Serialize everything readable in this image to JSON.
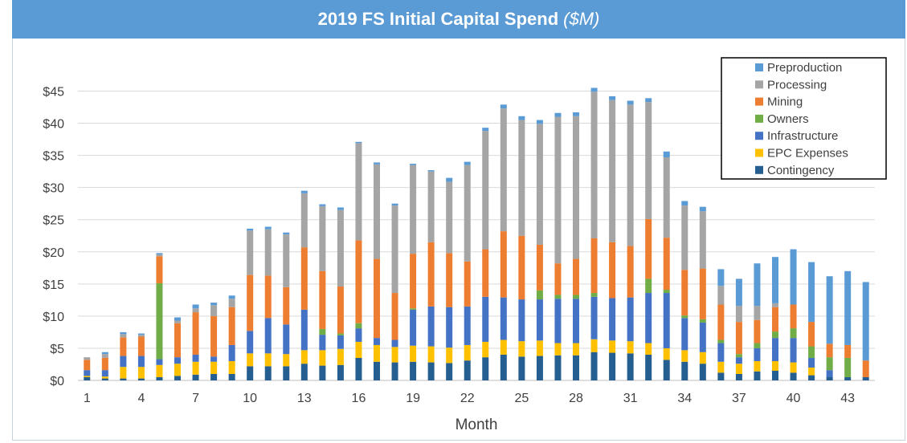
{
  "chart_data": {
    "type": "bar",
    "stacked": true,
    "title": "2019 FS Initial Capital Spend",
    "title_unit": "($M)",
    "xlabel": "Month",
    "ylabel": "",
    "ylim": [
      0,
      45
    ],
    "yticks": [
      "$0",
      "$5",
      "$10",
      "$15",
      "$20",
      "$25",
      "$30",
      "$35",
      "$40",
      "$45"
    ],
    "xtick_labels": [
      "1",
      "4",
      "7",
      "10",
      "13",
      "16",
      "19",
      "22",
      "25",
      "28",
      "31",
      "34",
      "37",
      "40",
      "43"
    ],
    "categories": [
      "1",
      "2",
      "3",
      "4",
      "5",
      "6",
      "7",
      "8",
      "9",
      "10",
      "11",
      "12",
      "13",
      "14",
      "15",
      "16",
      "17",
      "18",
      "19",
      "20",
      "21",
      "22",
      "23",
      "24",
      "25",
      "26",
      "27",
      "28",
      "29",
      "30",
      "31",
      "32",
      "33",
      "34",
      "35",
      "36",
      "37",
      "38",
      "39",
      "40",
      "41",
      "42",
      "43",
      "44"
    ],
    "grid": true,
    "legend_position": "top-right",
    "series": [
      {
        "name": "Contingency",
        "color": "#255e91",
        "values": [
          0.5,
          0.3,
          0.3,
          0.3,
          0.5,
          0.7,
          0.9,
          1.0,
          1.0,
          2.2,
          2.2,
          2.2,
          2.6,
          2.3,
          2.4,
          3.5,
          2.9,
          2.8,
          2.9,
          2.8,
          2.7,
          3.1,
          3.6,
          4.0,
          3.7,
          3.8,
          3.9,
          3.9,
          4.4,
          4.3,
          4.2,
          4.0,
          3.2,
          2.9,
          2.6,
          1.2,
          1.0,
          1.4,
          1.5,
          1.2,
          0.8,
          0.5,
          0.5,
          0.5
        ]
      },
      {
        "name": "EPC Expenses",
        "color": "#ffc000",
        "values": [
          0.2,
          0.3,
          1.8,
          1.8,
          1.9,
          1.9,
          2.0,
          1.9,
          2.0,
          2.0,
          2.0,
          1.9,
          2.1,
          2.4,
          2.5,
          2.5,
          2.6,
          2.4,
          2.5,
          2.5,
          2.4,
          2.4,
          2.4,
          2.3,
          2.4,
          2.4,
          1.9,
          1.9,
          2.0,
          1.9,
          1.9,
          1.8,
          1.8,
          1.8,
          1.8,
          1.7,
          1.6,
          1.6,
          1.5,
          1.6,
          1.2,
          0.0,
          0.0,
          0.0
        ]
      },
      {
        "name": "Infrastructure",
        "color": "#4472c4",
        "values": [
          0.9,
          1.0,
          1.7,
          1.7,
          0.9,
          1.0,
          1.1,
          0.8,
          2.5,
          3.5,
          5.5,
          4.6,
          6.3,
          2.4,
          2.1,
          2.1,
          1.1,
          1.1,
          5.6,
          6.2,
          6.3,
          6.0,
          7.0,
          6.6,
          6.5,
          6.4,
          6.9,
          6.9,
          6.6,
          6.6,
          6.8,
          7.8,
          8.6,
          5.0,
          4.6,
          2.9,
          1.0,
          2.0,
          3.6,
          3.8,
          1.5,
          1.1,
          0.0,
          0.0
        ]
      },
      {
        "name": "Owners",
        "color": "#70ad47",
        "values": [
          0.0,
          0.0,
          0.0,
          0.0,
          11.8,
          0.0,
          0.0,
          0.0,
          0.0,
          0.0,
          0.0,
          0.0,
          0.0,
          0.9,
          0.3,
          0.8,
          0.0,
          0.0,
          0.2,
          0.0,
          0.0,
          0.0,
          0.0,
          0.0,
          0.0,
          1.4,
          0.6,
          0.6,
          0.6,
          0.0,
          0.0,
          2.2,
          0.5,
          0.4,
          0.5,
          0.5,
          0.5,
          0.8,
          1.0,
          1.5,
          1.8,
          2.0,
          3.0,
          0.0
        ]
      },
      {
        "name": "Mining",
        "color": "#ed7d31",
        "values": [
          1.6,
          1.9,
          2.9,
          3.0,
          4.2,
          5.3,
          6.6,
          6.3,
          5.9,
          8.7,
          6.6,
          5.8,
          9.7,
          9.0,
          7.3,
          12.9,
          12.3,
          7.3,
          8.5,
          10.0,
          8.4,
          7.0,
          7.4,
          10.3,
          9.9,
          7.1,
          4.9,
          5.6,
          8.5,
          8.7,
          8.0,
          9.3,
          8.1,
          7.1,
          7.9,
          5.5,
          5.0,
          3.6,
          3.8,
          3.7,
          3.8,
          2.1,
          2.0,
          2.6
        ]
      },
      {
        "name": "Processing",
        "color": "#a5a5a5",
        "values": [
          0.4,
          0.6,
          0.5,
          0.3,
          0.3,
          0.4,
          0.6,
          1.7,
          1.3,
          6.9,
          7.2,
          8.2,
          8.4,
          10.1,
          11.9,
          15.1,
          14.7,
          13.6,
          13.8,
          11.0,
          11.1,
          15.0,
          18.4,
          19.1,
          18.0,
          18.8,
          22.8,
          22.2,
          22.8,
          22.1,
          22.0,
          18.2,
          12.5,
          10.0,
          8.9,
          2.9,
          2.5,
          2.2,
          0.6,
          0.0,
          0.0,
          0.0,
          0.0,
          0.0
        ]
      },
      {
        "name": "Preproduction",
        "color": "#5b9bd5",
        "values": [
          0.0,
          0.3,
          0.3,
          0.2,
          0.2,
          0.5,
          0.6,
          0.4,
          0.5,
          0.3,
          0.4,
          0.3,
          0.4,
          0.3,
          0.4,
          0.2,
          0.3,
          0.3,
          0.2,
          0.2,
          0.6,
          0.5,
          0.5,
          0.6,
          0.6,
          0.6,
          0.6,
          0.6,
          0.6,
          0.6,
          0.6,
          0.6,
          0.9,
          0.7,
          0.7,
          2.6,
          4.2,
          6.6,
          7.2,
          8.6,
          9.3,
          10.5,
          11.5,
          12.2
        ]
      }
    ]
  }
}
